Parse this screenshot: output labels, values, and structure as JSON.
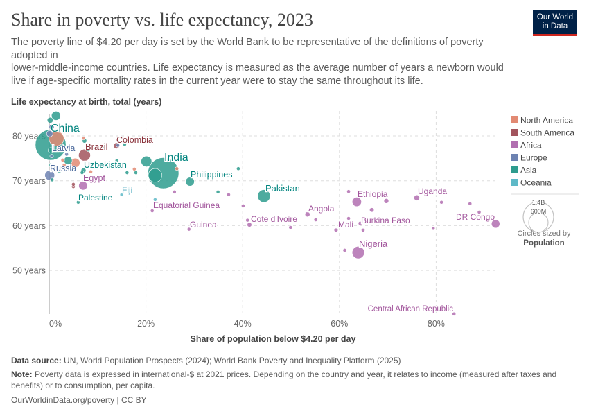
{
  "header": {
    "title": "Share in poverty vs. life expectancy, 2023",
    "subtitle_lines": [
      "The poverty line of $4.20 per day is set by the World Bank to be representative of the definitions of poverty adopted in",
      "lower-middle-income countries. Life expectancy is measured as the average number of years a newborn would",
      "live if age-specific mortality rates in the current year were to stay the same throughout its life."
    ],
    "logo_lines": [
      "Our World",
      "in Data"
    ]
  },
  "legend": {
    "regions": [
      {
        "name": "North America",
        "color": "#e28a73"
      },
      {
        "name": "South America",
        "color": "#a2545d"
      },
      {
        "name": "Africa",
        "color": "#b16fb0"
      },
      {
        "name": "Europe",
        "color": "#6d82b1"
      },
      {
        "name": "Asia",
        "color": "#2e9c8e"
      },
      {
        "name": "Oceania",
        "color": "#5eb9c7"
      }
    ],
    "size_big": "1.4B",
    "size_small": "600M",
    "size_note": "Circles sized by",
    "size_variable": "Population"
  },
  "chart_data": {
    "type": "scatter",
    "xlabel": "Share of population below $4.20 per day",
    "ylabel": "Life expectancy at birth, total (years)",
    "xlim": [
      0,
      92
    ],
    "ylim": [
      40,
      85
    ],
    "x_ticks": [
      {
        "v": 0,
        "label": "0%"
      },
      {
        "v": 20,
        "label": "20%"
      },
      {
        "v": 40,
        "label": "40%"
      },
      {
        "v": 60,
        "label": "60%"
      },
      {
        "v": 80,
        "label": "80%"
      }
    ],
    "y_ticks": [
      {
        "v": 80,
        "label": "80 years"
      },
      {
        "v": 70,
        "label": "70 years"
      },
      {
        "v": 60,
        "label": "60 years"
      },
      {
        "v": 50,
        "label": "50 years"
      }
    ],
    "grid": true,
    "legend_position": "right",
    "points": [
      {
        "name": "China",
        "x": 0.3,
        "y": 78,
        "pop": 1410,
        "region": "Asia"
      },
      {
        "name": "India",
        "x": 23.6,
        "y": 71.7,
        "pop": 1430,
        "region": "Asia"
      },
      {
        "name": "Pakistan",
        "x": 44.4,
        "y": 66.6,
        "pop": 240,
        "region": "Asia"
      },
      {
        "name": "Nigeria",
        "x": 63.9,
        "y": 54,
        "pop": 225,
        "region": "Africa"
      },
      {
        "name": "Ethiopia",
        "x": 63.6,
        "y": 65.3,
        "pop": 128,
        "region": "Africa"
      },
      {
        "name": "DR Congo",
        "x": 92.3,
        "y": 60.4,
        "pop": 105,
        "region": "Africa"
      },
      {
        "name": "Uganda",
        "x": 76,
        "y": 66.2,
        "pop": 48,
        "region": "Africa"
      },
      {
        "name": "Angola",
        "x": 53.4,
        "y": 62.5,
        "pop": 37,
        "region": "Africa"
      },
      {
        "name": "Cote d'Ivoire",
        "x": 41.4,
        "y": 60.2,
        "pop": 31,
        "region": "Africa"
      },
      {
        "name": "Mali",
        "x": 59.3,
        "y": 59,
        "pop": 23,
        "region": "Africa"
      },
      {
        "name": "Burkina Faso",
        "x": 64.3,
        "y": 60.5,
        "pop": 23,
        "region": "Africa"
      },
      {
        "name": "Central African Republic",
        "x": 83.7,
        "y": 40.3,
        "pop": 5,
        "region": "Africa"
      },
      {
        "name": "Guinea",
        "x": 28.9,
        "y": 59.2,
        "pop": 14,
        "region": "Africa"
      },
      {
        "name": "Equatorial Guinea",
        "x": 21.3,
        "y": 63.3,
        "pop": 2,
        "region": "Africa"
      },
      {
        "name": "Fiji",
        "x": 15,
        "y": 66.9,
        "pop": 1,
        "region": "Oceania"
      },
      {
        "name": "Palestine",
        "x": 6,
        "y": 65.2,
        "pop": 5,
        "region": "Asia"
      },
      {
        "name": "Egypt",
        "x": 7,
        "y": 68.9,
        "pop": 113,
        "region": "Africa"
      },
      {
        "name": "Uzbekistan",
        "x": 7.1,
        "y": 72.3,
        "pop": 36,
        "region": "Asia"
      },
      {
        "name": "Russia",
        "x": 0.1,
        "y": 71.2,
        "pop": 144,
        "region": "Europe"
      },
      {
        "name": "Latvia",
        "x": 0.5,
        "y": 75.5,
        "pop": 2,
        "region": "Europe"
      },
      {
        "name": "Brazil",
        "x": 7.3,
        "y": 75.7,
        "pop": 211,
        "region": "South America"
      },
      {
        "name": "Colombia",
        "x": 13.9,
        "y": 77.8,
        "pop": 52,
        "region": "South America"
      },
      {
        "name": "Philippines",
        "x": 29.1,
        "y": 69.8,
        "pop": 115,
        "region": "Asia"
      },
      {
        "x": 1.5,
        "y": 79.4,
        "pop": 335,
        "region": "North America"
      },
      {
        "x": 5.4,
        "y": 74,
        "pop": 128,
        "region": "North America"
      },
      {
        "x": 21.9,
        "y": 71.2,
        "pop": 278,
        "region": "Asia"
      },
      {
        "x": 20.1,
        "y": 74.3,
        "pop": 172,
        "region": "Asia"
      },
      {
        "x": 1.4,
        "y": 84.5,
        "pop": 124,
        "region": "Asia"
      },
      {
        "x": 3.9,
        "y": 74.5,
        "pop": 99,
        "region": "Asia"
      },
      {
        "x": 0.2,
        "y": 83.5,
        "pop": 52,
        "region": "Asia"
      },
      {
        "x": 0.5,
        "y": 82,
        "pop": 40,
        "region": "Europe"
      },
      {
        "x": 0.1,
        "y": 80.5,
        "pop": 60,
        "region": "Europe"
      },
      {
        "x": 0.3,
        "y": 76.8,
        "pop": 40,
        "region": "Asia"
      },
      {
        "x": 0.2,
        "y": 73.5,
        "pop": 20,
        "region": "Asia"
      },
      {
        "x": 0.6,
        "y": 70.2,
        "pop": 8,
        "region": "Asia"
      },
      {
        "x": 2.1,
        "y": 72.1,
        "pop": 6,
        "region": "Asia"
      },
      {
        "x": 7.3,
        "y": 78.9,
        "pop": 30,
        "region": "Asia"
      },
      {
        "x": 8.1,
        "y": 76.9,
        "pop": 8,
        "region": "Asia"
      },
      {
        "x": 3.3,
        "y": 81.2,
        "pop": 3,
        "region": "North America"
      },
      {
        "x": 7.1,
        "y": 79.5,
        "pop": 4,
        "region": "North America"
      },
      {
        "x": 3.6,
        "y": 75.9,
        "pop": 3,
        "region": "Europe"
      },
      {
        "x": 2.8,
        "y": 74.6,
        "pop": 4,
        "region": "North America"
      },
      {
        "x": 3.1,
        "y": 73.5,
        "pop": 3,
        "region": "North America"
      },
      {
        "x": 5,
        "y": 68.7,
        "pop": 3,
        "region": "South America"
      },
      {
        "x": 5,
        "y": 69.2,
        "pop": 3,
        "region": "South America"
      },
      {
        "x": 8.6,
        "y": 72,
        "pop": 4,
        "region": "North America"
      },
      {
        "x": 6.8,
        "y": 71.8,
        "pop": 7,
        "region": "Asia"
      },
      {
        "x": 14.2,
        "y": 77.9,
        "pop": 4,
        "region": "Europe"
      },
      {
        "x": 15.6,
        "y": 78.1,
        "pop": 3,
        "region": "Asia"
      },
      {
        "x": 11.4,
        "y": 77.3,
        "pop": 4,
        "region": "Asia"
      },
      {
        "x": 14,
        "y": 74.5,
        "pop": 3,
        "region": "Asia"
      },
      {
        "x": 16.1,
        "y": 71.8,
        "pop": 3,
        "region": "Asia"
      },
      {
        "x": 17.9,
        "y": 71.8,
        "pop": 3,
        "region": "Asia"
      },
      {
        "x": 17.6,
        "y": 72.6,
        "pop": 3,
        "region": "North America"
      },
      {
        "x": 26.4,
        "y": 72.7,
        "pop": 3,
        "region": "North America"
      },
      {
        "x": 25.9,
        "y": 67.5,
        "pop": 3,
        "region": "Africa"
      },
      {
        "x": 34.9,
        "y": 67.5,
        "pop": 3,
        "region": "Asia"
      },
      {
        "x": 37.1,
        "y": 66.9,
        "pop": 3,
        "region": "Africa"
      },
      {
        "x": 39.1,
        "y": 72.7,
        "pop": 3,
        "region": "Asia"
      },
      {
        "x": 21.9,
        "y": 65.8,
        "pop": 2,
        "region": "Oceania"
      },
      {
        "x": 40.1,
        "y": 64.4,
        "pop": 3,
        "region": "Africa"
      },
      {
        "x": 41,
        "y": 61.2,
        "pop": 5,
        "region": "Africa"
      },
      {
        "x": 49.9,
        "y": 59.6,
        "pop": 3,
        "region": "Africa"
      },
      {
        "x": 55.1,
        "y": 61.3,
        "pop": 3,
        "region": "Africa"
      },
      {
        "x": 61.9,
        "y": 67.6,
        "pop": 3,
        "region": "Africa"
      },
      {
        "x": 61.9,
        "y": 61.6,
        "pop": 3,
        "region": "Africa"
      },
      {
        "x": 66.7,
        "y": 63.5,
        "pop": 30,
        "region": "Africa"
      },
      {
        "x": 69.7,
        "y": 65.5,
        "pop": 35,
        "region": "Africa"
      },
      {
        "x": 64.9,
        "y": 59,
        "pop": 3,
        "region": "Africa"
      },
      {
        "x": 61.1,
        "y": 54.5,
        "pop": 5,
        "region": "Africa"
      },
      {
        "x": 81.1,
        "y": 65.2,
        "pop": 4,
        "region": "Africa"
      },
      {
        "x": 87,
        "y": 64.9,
        "pop": 4,
        "region": "Africa"
      },
      {
        "x": 88.9,
        "y": 63,
        "pop": 12,
        "region": "Africa"
      },
      {
        "x": 79.4,
        "y": 59.4,
        "pop": 5,
        "region": "Africa"
      }
    ]
  },
  "footer": {
    "source_label": "Data source:",
    "source": "UN, World Population Prospects (2024); World Bank Poverty and Inequality Platform (2025)",
    "note_label": "Note:",
    "note": "Poverty data is expressed in international-$ at 2021 prices. Depending on the country and year, it relates to income (measured after taxes and benefits) or to consumption, per capita.",
    "url": "OurWorldinData.org/poverty | CC BY"
  }
}
